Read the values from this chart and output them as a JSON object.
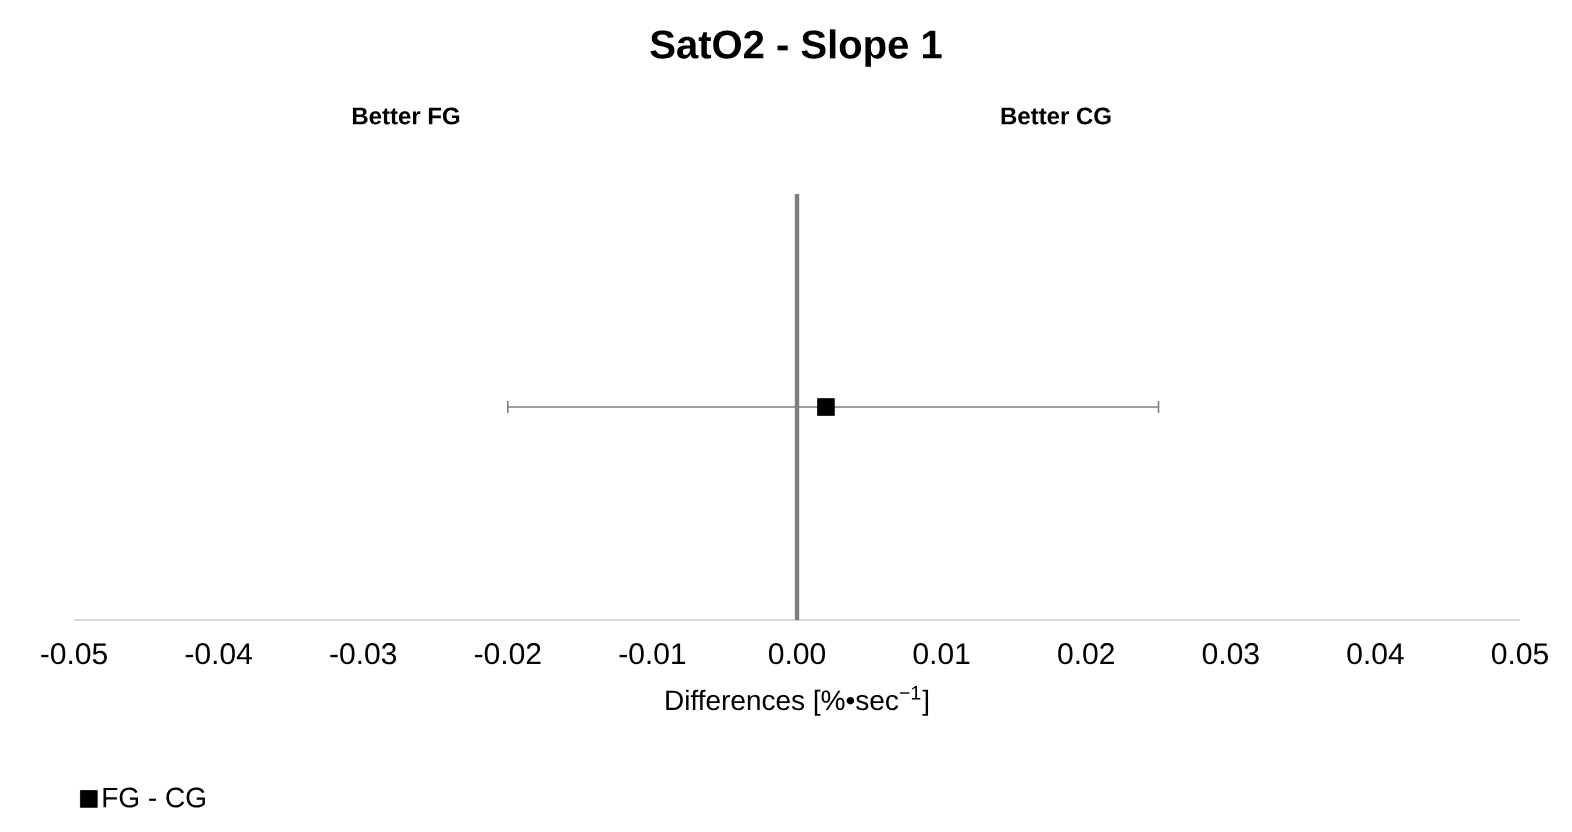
{
  "chart_data": {
    "type": "scatter",
    "title": "SatO2 - Slope 1",
    "xlabel": "Differences [%•sec$^{−1}$]",
    "annotations": [
      "Better FG",
      "Better CG"
    ],
    "orientation": "horizontal",
    "categories": [
      null
    ],
    "series": [
      {
        "name": "FG - CG",
        "color": "#000000",
        "values": [
          0.002
        ],
        "errors": [
          [
            -0.02,
            0.025
          ]
        ]
      }
    ],
    "xlim": [
      -0.05,
      0.05
    ],
    "xticks": [
      {
        "value": -0.05,
        "label": "-0.05"
      },
      {
        "value": -0.04,
        "label": "-0.04"
      },
      {
        "value": -0.03,
        "label": "-0.03"
      },
      {
        "value": -0.02,
        "label": "-0.02"
      },
      {
        "value": -0.01,
        "label": "-0.01"
      },
      {
        "value": 0,
        "label": "0.00"
      },
      {
        "value": 0.01,
        "label": "0.01"
      },
      {
        "value": 0.02,
        "label": "0.02"
      },
      {
        "value": 0.03,
        "label": "0.03"
      },
      {
        "value": 0.04,
        "label": "0.04"
      },
      {
        "value": 0.05,
        "label": "0.05"
      }
    ],
    "tick_labels": "x",
    "grid": false,
    "legend": "bottom left",
    "marker": "square",
    "ref_lines": [
      {
        "axis": "x",
        "value": 0,
        "color": "#7f7f7f"
      }
    ]
  }
}
